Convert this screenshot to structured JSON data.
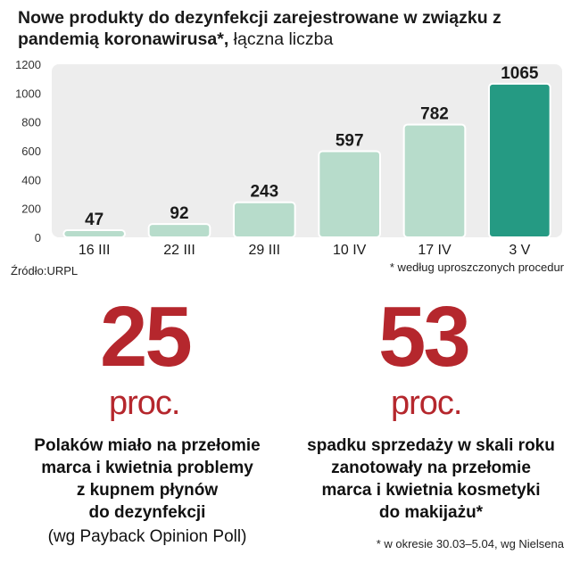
{
  "title": {
    "bold": "Nowe produkty do dezynfekcji zarejestrowane w związku z pandemią koronawirusa*,",
    "light": " łączna liczba"
  },
  "source": "Źródło:URPL",
  "chart_note": "* według uproszczonych procedur",
  "colors": {
    "bar": "#b7dccb",
    "bar_highlight": "#259a83",
    "accent_red": "#b5272d",
    "plot_bg": "#ededed"
  },
  "chart_data": {
    "type": "bar",
    "categories": [
      "16 III",
      "22 III",
      "29 III",
      "10 IV",
      "17 IV",
      "3 V"
    ],
    "values": [
      47,
      92,
      243,
      597,
      782,
      1065
    ],
    "value_labels": [
      "47",
      "92",
      "243",
      "597",
      "782",
      "1065"
    ],
    "ylim": [
      0,
      1200
    ],
    "yticks": [
      0,
      200,
      400,
      600,
      800,
      1000,
      1200
    ],
    "highlight_index": 5,
    "grid": false,
    "legend": "none"
  },
  "stats": [
    {
      "number": "25",
      "unit": "proc.",
      "desc": [
        "Polaków miało na przełomie",
        "marca i kwietnia problemy",
        "z kupnem płynów",
        "do dezynfekcji"
      ],
      "sub": "(wg Payback Opinion Poll)"
    },
    {
      "number": "53",
      "unit": "proc.",
      "desc": [
        "spadku sprzedaży w skali roku",
        "zanotowały na przełomie",
        "marca i kwietnia kosmetyki",
        "do makijażu*"
      ],
      "sub": ""
    }
  ],
  "footnote": "* w okresie 30.03–5.04, wg Nielsena"
}
